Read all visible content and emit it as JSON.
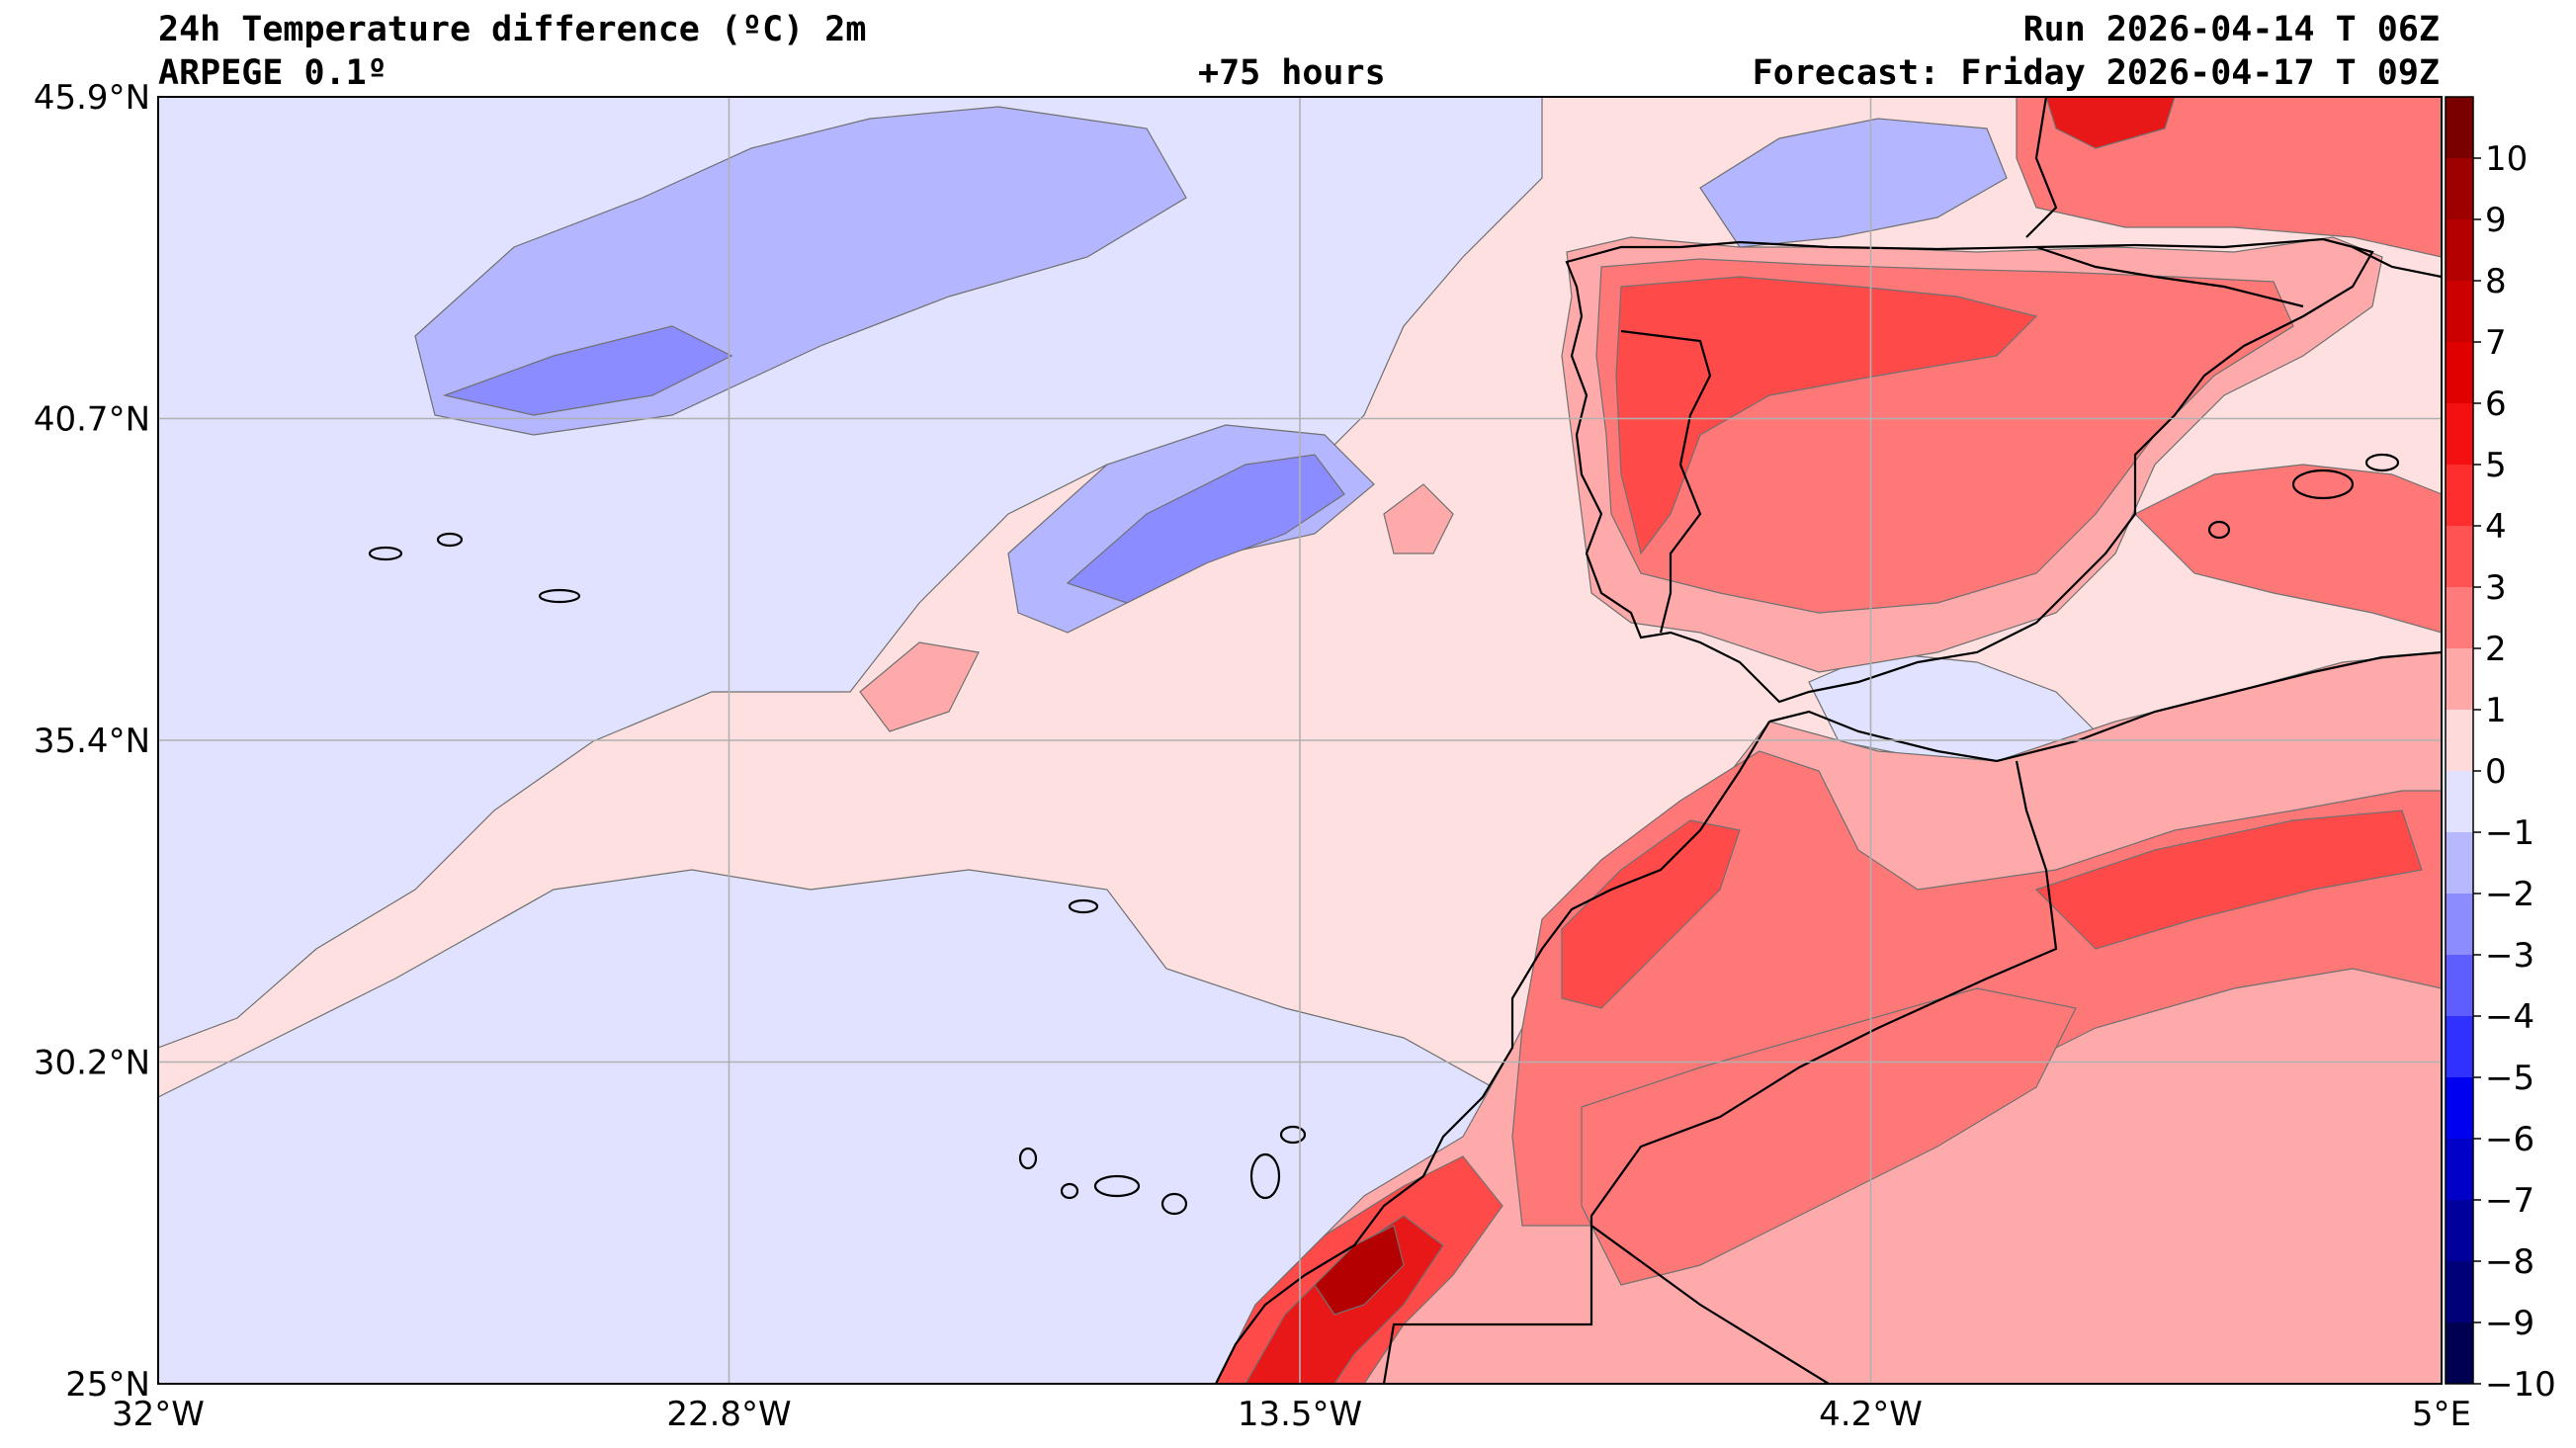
{
  "header": {
    "title": "24h Temperature difference (ºC) 2m",
    "model": "ARPEGE 0.1º",
    "lead": "+75 hours",
    "run": "Run 2026-04-14 T 06Z",
    "forecast": "Forecast: Friday 2026-04-17 T 09Z"
  },
  "axes": {
    "lat_labels": [
      "45.9°N",
      "40.7°N",
      "35.4°N",
      "30.2°N",
      "25°N"
    ],
    "lon_labels": [
      "32°W",
      "22.8°W",
      "13.5°W",
      "4.2°W",
      "5°E"
    ]
  },
  "colorbar": {
    "labels": [
      "10",
      "9",
      "8",
      "7",
      "6",
      "5",
      "4",
      "3",
      "2",
      "1",
      "0",
      "−1",
      "−2",
      "−3",
      "−4",
      "−5",
      "−6",
      "−7",
      "−8",
      "−9",
      "−10"
    ],
    "colors": [
      "#7a0000",
      "#9e0000",
      "#b40000",
      "#cc0000",
      "#e00000",
      "#f41010",
      "#ff2e2e",
      "#ff5252",
      "#ff7a7a",
      "#ffa8a8",
      "#ffdada",
      "#e2e2ff",
      "#b8b8ff",
      "#8c8cff",
      "#5e5eff",
      "#3030ff",
      "#0000f0",
      "#0000c8",
      "#00009c",
      "#000078",
      "#000050"
    ]
  },
  "palette": {
    "ocean_pos": "#ffe0e0",
    "ocean_neg": "#e0e2ff",
    "blue1": "#b4b6ff",
    "blue2": "#8a8cff",
    "red1": "#ffaaaa",
    "red2": "#ff7878",
    "red3": "#ff4a4a",
    "red4": "#e81818",
    "red5": "#b40000"
  }
}
